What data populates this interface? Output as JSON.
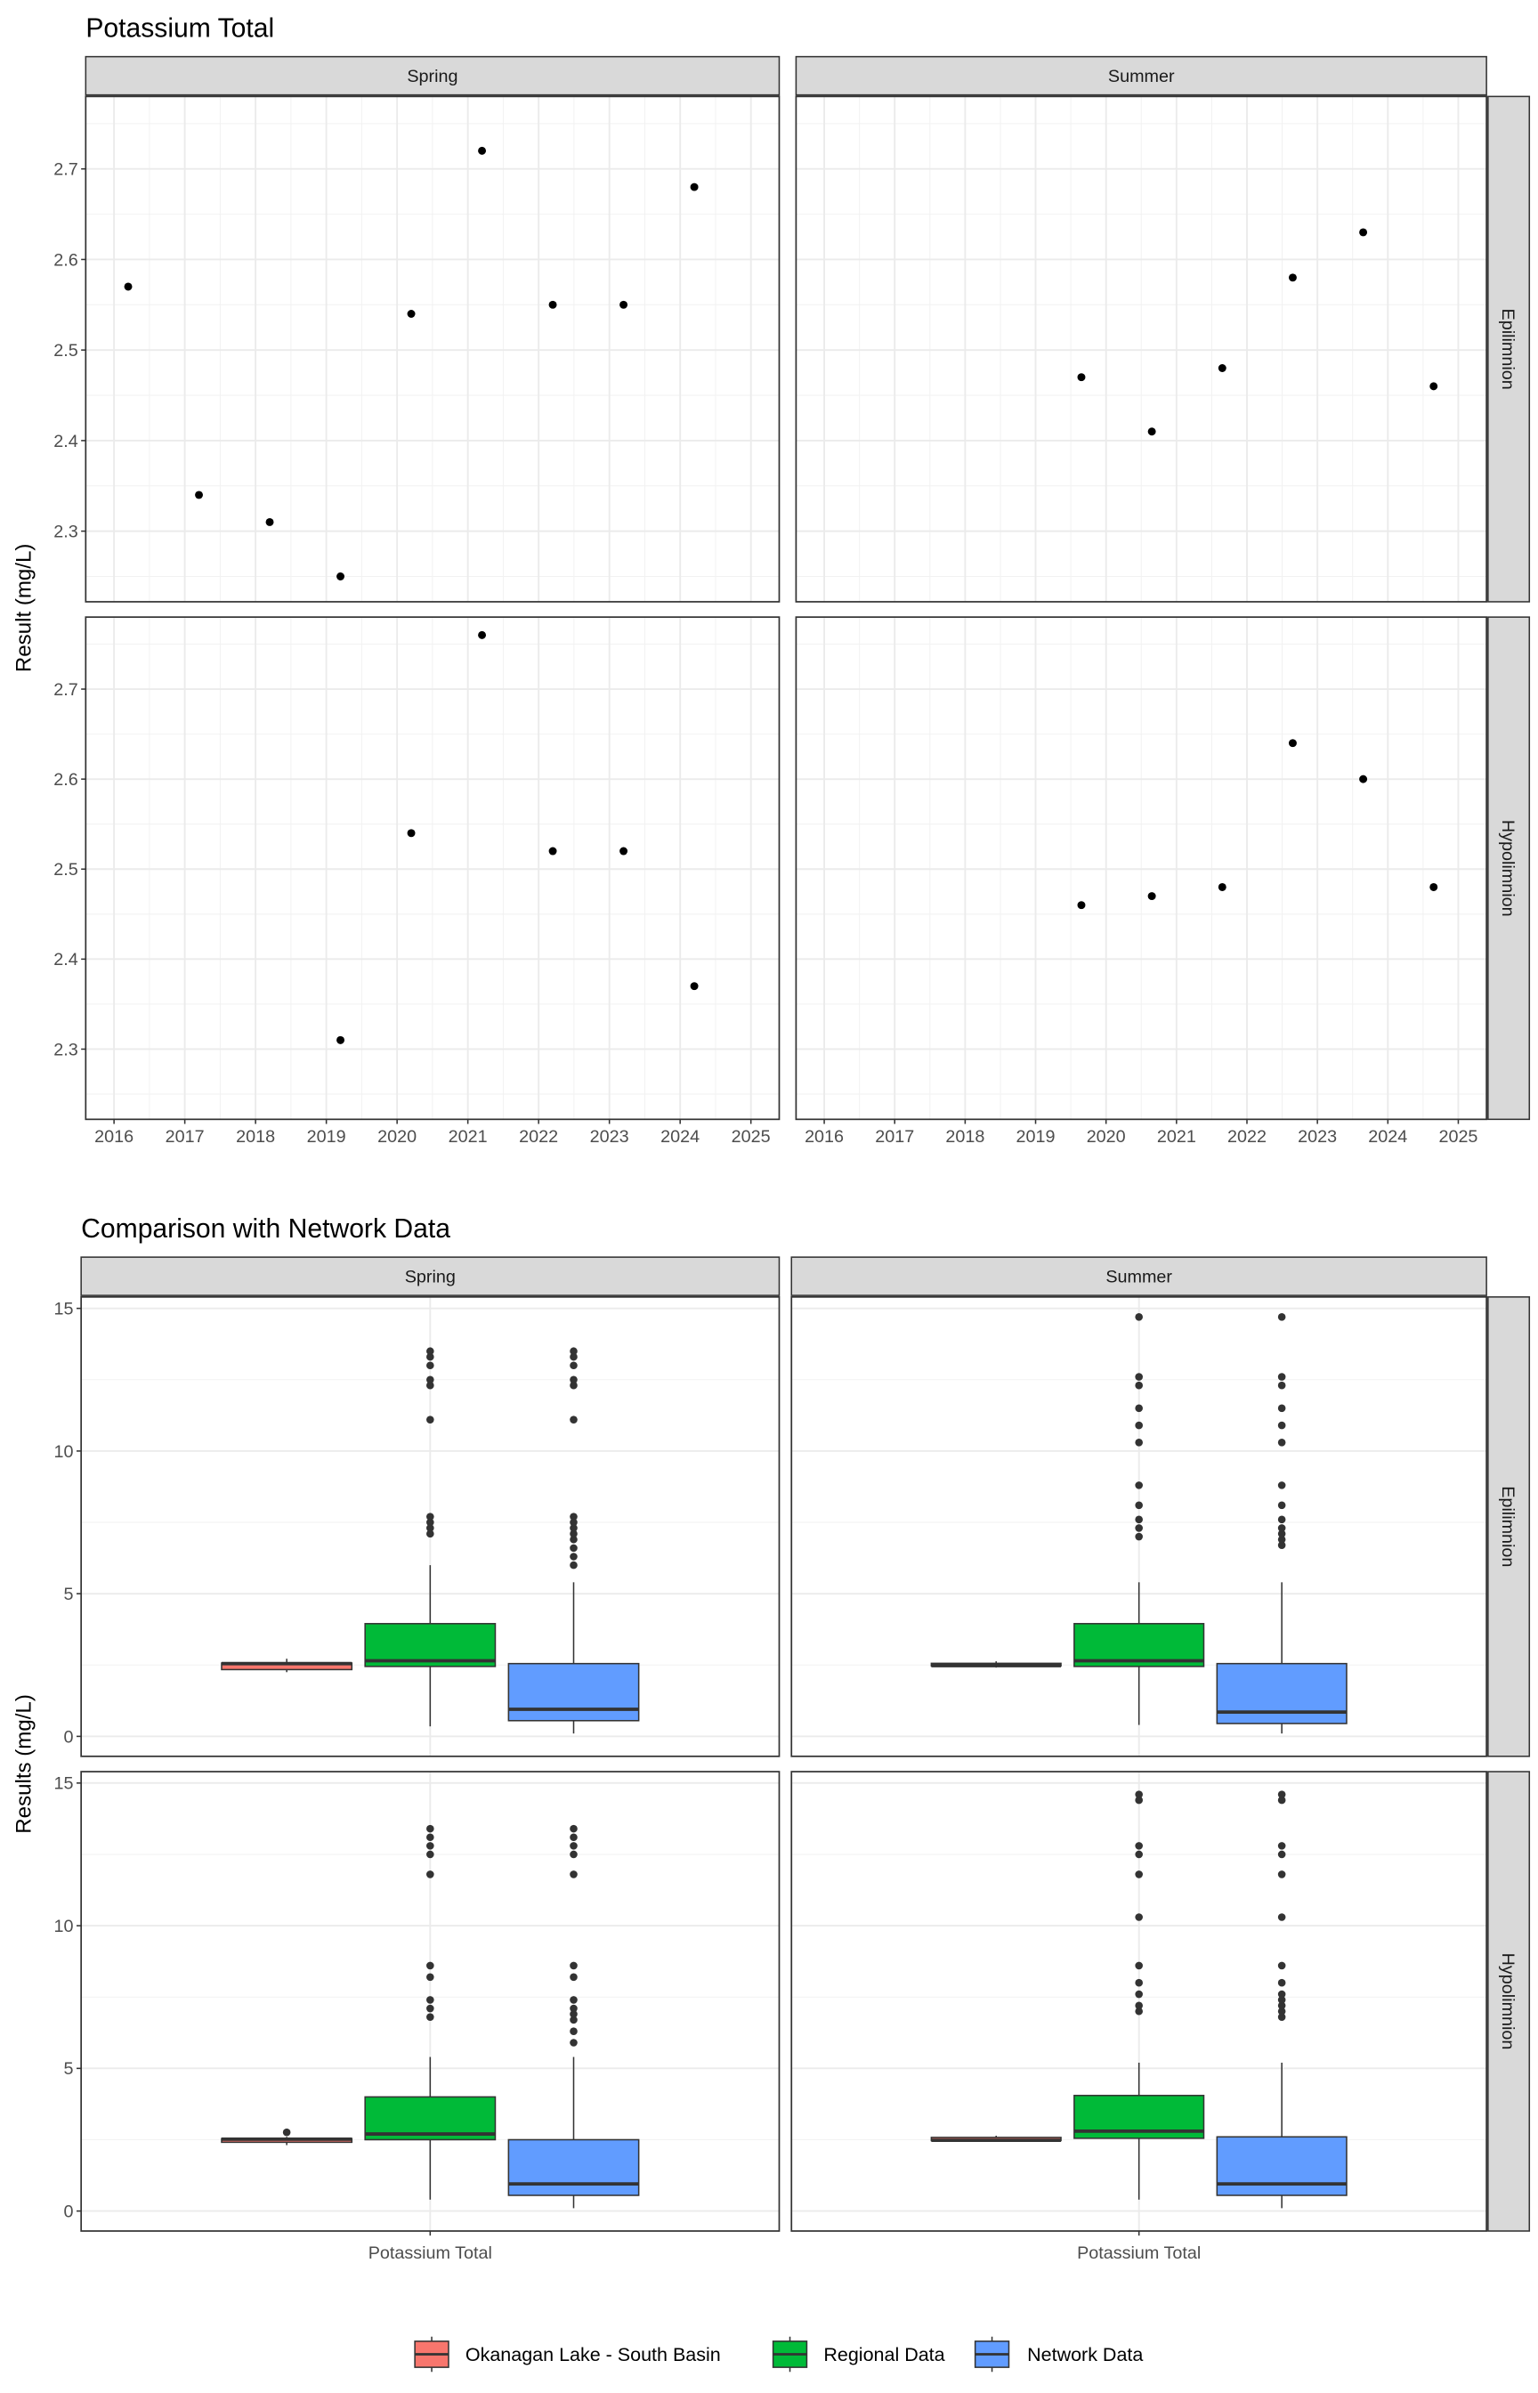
{
  "chart_data": [
    {
      "type": "scatter",
      "title": "Potassium Total",
      "ylabel": "Result (mg/L)",
      "xlabel": "",
      "facet_cols": [
        "Spring",
        "Summer"
      ],
      "facet_rows": [
        "Epilimnion",
        "Hypolimnion"
      ],
      "xlim": [
        2015.6,
        2025.4
      ],
      "ylim": [
        2.222,
        2.78
      ],
      "xticks": [
        2016,
        2017,
        2018,
        2019,
        2020,
        2021,
        2022,
        2023,
        2024,
        2025
      ],
      "yticks": [
        2.3,
        2.4,
        2.5,
        2.6,
        2.7
      ],
      "grid": true,
      "panels": [
        {
          "col": "Spring",
          "row": "Epilimnion",
          "points": [
            [
              2016.2,
              2.57
            ],
            [
              2017.2,
              2.34
            ],
            [
              2018.2,
              2.31
            ],
            [
              2019.2,
              2.25
            ],
            [
              2020.2,
              2.54
            ],
            [
              2021.2,
              2.72
            ],
            [
              2022.2,
              2.55
            ],
            [
              2023.2,
              2.55
            ],
            [
              2024.2,
              2.68
            ]
          ]
        },
        {
          "col": "Summer",
          "row": "Epilimnion",
          "points": [
            [
              2019.65,
              2.47
            ],
            [
              2020.65,
              2.41
            ],
            [
              2021.65,
              2.48
            ],
            [
              2022.65,
              2.58
            ],
            [
              2023.65,
              2.63
            ],
            [
              2024.65,
              2.46
            ]
          ]
        },
        {
          "col": "Spring",
          "row": "Hypolimnion",
          "points": [
            [
              2019.2,
              2.31
            ],
            [
              2020.2,
              2.54
            ],
            [
              2021.2,
              2.76
            ],
            [
              2022.2,
              2.52
            ],
            [
              2023.2,
              2.52
            ],
            [
              2024.2,
              2.37
            ]
          ]
        },
        {
          "col": "Summer",
          "row": "Hypolimnion",
          "points": [
            [
              2019.65,
              2.46
            ],
            [
              2020.65,
              2.47
            ],
            [
              2021.65,
              2.48
            ],
            [
              2022.65,
              2.64
            ],
            [
              2023.65,
              2.6
            ],
            [
              2024.65,
              2.48
            ]
          ]
        }
      ]
    },
    {
      "type": "boxplot",
      "title": "Comparison with Network Data",
      "ylabel": "Results (mg/L)",
      "xlabel": "",
      "category": "Potassium Total",
      "facet_cols": [
        "Spring",
        "Summer"
      ],
      "facet_rows": [
        "Epilimnion",
        "Hypolimnion"
      ],
      "ylim": [
        -0.7,
        15.4
      ],
      "yticks": [
        0,
        5,
        10,
        15
      ],
      "grid": true,
      "legend_position": "bottom",
      "series": [
        {
          "name": "Okanagan Lake - South Basin",
          "color": "#F8766D"
        },
        {
          "name": "Regional Data",
          "color": "#00BA38"
        },
        {
          "name": "Network Data",
          "color": "#619CFF"
        }
      ],
      "panels": [
        {
          "col": "Spring",
          "row": "Epilimnion",
          "boxes": [
            {
              "series": "Okanagan Lake - South Basin",
              "min": 2.25,
              "q1": 2.34,
              "median": 2.55,
              "q3": 2.57,
              "max": 2.72,
              "outliers": []
            },
            {
              "series": "Regional Data",
              "min": 0.35,
              "q1": 2.45,
              "median": 2.65,
              "q3": 3.95,
              "max": 6.0,
              "outliers": [
                7.1,
                7.3,
                7.5,
                7.7,
                11.1,
                12.3,
                12.5,
                13.0,
                13.3,
                13.5
              ]
            },
            {
              "series": "Network Data",
              "min": 0.1,
              "q1": 0.55,
              "median": 0.95,
              "q3": 2.55,
              "max": 5.4,
              "outliers": [
                6.0,
                6.3,
                6.6,
                6.9,
                7.1,
                7.3,
                7.5,
                7.7,
                11.1,
                12.3,
                12.5,
                13.0,
                13.3,
                13.5
              ]
            }
          ]
        },
        {
          "col": "Summer",
          "row": "Epilimnion",
          "boxes": [
            {
              "series": "Okanagan Lake - South Basin",
              "min": 2.41,
              "q1": 2.47,
              "median": 2.48,
              "q3": 2.56,
              "max": 2.63,
              "outliers": []
            },
            {
              "series": "Regional Data",
              "min": 0.4,
              "q1": 2.45,
              "median": 2.65,
              "q3": 3.95,
              "max": 5.4,
              "outliers": [
                7.0,
                7.3,
                7.6,
                8.1,
                8.8,
                10.3,
                10.9,
                11.5,
                12.3,
                12.6,
                14.7
              ]
            },
            {
              "series": "Network Data",
              "min": 0.1,
              "q1": 0.45,
              "median": 0.85,
              "q3": 2.55,
              "max": 5.4,
              "outliers": [
                6.7,
                6.9,
                7.1,
                7.3,
                7.6,
                8.1,
                8.8,
                10.3,
                10.9,
                11.5,
                12.3,
                12.6,
                14.7
              ]
            }
          ]
        },
        {
          "col": "Spring",
          "row": "Hypolimnion",
          "boxes": [
            {
              "series": "Okanagan Lake - South Basin",
              "min": 2.31,
              "q1": 2.41,
              "median": 2.52,
              "q3": 2.54,
              "max": 2.6,
              "outliers": [
                2.76
              ]
            },
            {
              "series": "Regional Data",
              "min": 0.4,
              "q1": 2.5,
              "median": 2.7,
              "q3": 4.0,
              "max": 5.4,
              "outliers": [
                6.8,
                7.1,
                7.4,
                8.2,
                8.6,
                11.8,
                12.5,
                12.8,
                13.1,
                13.4
              ]
            },
            {
              "series": "Network Data",
              "min": 0.1,
              "q1": 0.55,
              "median": 0.95,
              "q3": 2.5,
              "max": 5.4,
              "outliers": [
                5.9,
                6.3,
                6.7,
                6.9,
                7.1,
                7.4,
                8.2,
                8.6,
                11.8,
                12.5,
                12.8,
                13.1,
                13.4
              ]
            }
          ]
        },
        {
          "col": "Summer",
          "row": "Hypolimnion",
          "boxes": [
            {
              "series": "Okanagan Lake - South Basin",
              "min": 2.46,
              "q1": 2.47,
              "median": 2.48,
              "q3": 2.58,
              "max": 2.64,
              "outliers": []
            },
            {
              "series": "Regional Data",
              "min": 0.4,
              "q1": 2.55,
              "median": 2.8,
              "q3": 4.05,
              "max": 5.2,
              "outliers": [
                7.0,
                7.2,
                7.6,
                8.0,
                8.6,
                10.3,
                11.8,
                12.5,
                12.8,
                14.4,
                14.6
              ]
            },
            {
              "series": "Network Data",
              "min": 0.1,
              "q1": 0.55,
              "median": 0.95,
              "q3": 2.6,
              "max": 5.2,
              "outliers": [
                6.8,
                7.0,
                7.2,
                7.4,
                7.6,
                8.0,
                8.6,
                10.3,
                11.8,
                12.5,
                12.8,
                14.4,
                14.6
              ]
            }
          ]
        }
      ]
    }
  ]
}
